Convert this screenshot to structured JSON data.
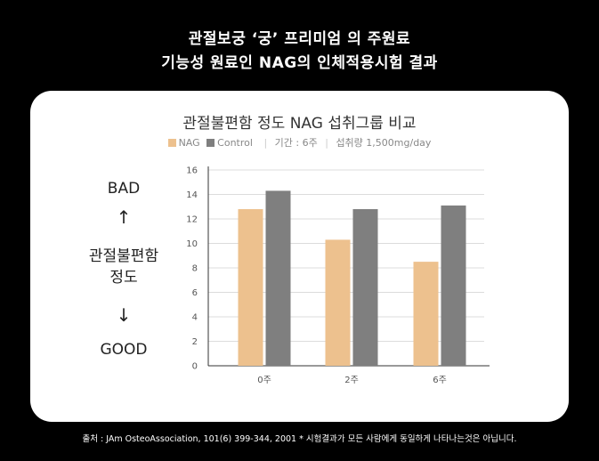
{
  "header": {
    "line1": "관절보궁 ‘궁’ 프리미엄 의 주원료",
    "line2": "기능성 원료인 NAG의 인체적용시험 결과"
  },
  "side_labels": {
    "bad": "BAD",
    "up_arrow": "↑",
    "y_name_line1": "관절불편함",
    "y_name_line2": "정도",
    "down_arrow": "↓",
    "good": "GOOD"
  },
  "legend_extra": {
    "period": "기간 : 6주",
    "intake": "섭취량 1,500mg/day"
  },
  "footnote": "출처 : JAm OsteoAssociation, 101(6) 399-344, 2001 * 시험결과가 모든 사람에게 동일하게 나타나는것은 아닙니다.",
  "colors": {
    "nag": "#EDC18E",
    "control": "#7F7F7F",
    "background": "#000000",
    "card": "#FFFFFF"
  },
  "chart_data": {
    "type": "bar",
    "title": "관절불편함 정도 NAG 섭취그룹 비교",
    "categories": [
      "0주",
      "2주",
      "6주"
    ],
    "series": [
      {
        "name": "NAG",
        "values": [
          12.8,
          10.3,
          8.5
        ]
      },
      {
        "name": "Control",
        "values": [
          14.3,
          12.8,
          13.1
        ]
      }
    ],
    "yticks": [
      0,
      2,
      4,
      6,
      8,
      10,
      12,
      14,
      16
    ],
    "ylim": [
      0,
      16
    ],
    "grid": true,
    "legend_position": "top-center"
  }
}
